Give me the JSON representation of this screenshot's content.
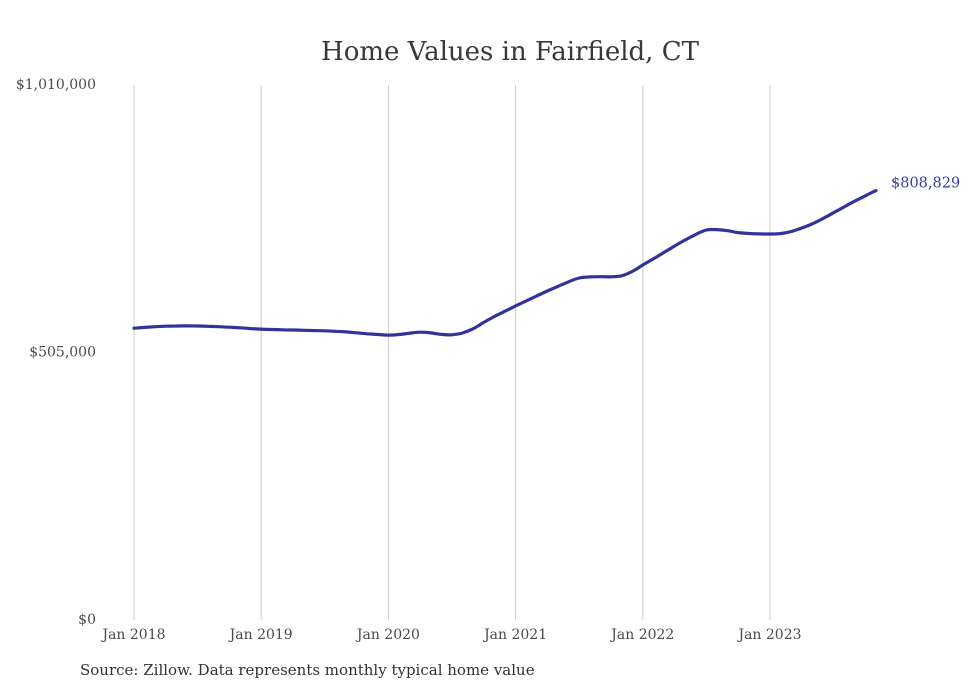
{
  "title": "Home Values in Fairfield, CT",
  "source_note": "Source: Zillow. Data represents monthly typical home value",
  "colors": {
    "line": "#32329b",
    "end_label_text": "#3b3b9e",
    "grid": "#cccccc",
    "title_text": "#383838",
    "axis_text": "#4a4a4a",
    "background": "#ffffff"
  },
  "chart_data": {
    "type": "line",
    "title": "Home Values in Fairfield, CT",
    "series_name": "Monthly typical home value (USD)",
    "xlabel": "",
    "ylabel": "",
    "ylim": [
      0,
      1010000
    ],
    "y_tick_values": [
      0,
      505000,
      1010000
    ],
    "y_tick_labels": [
      "$0",
      "$505,000",
      "$1,010,000"
    ],
    "x_tick_labels": [
      "Jan 2018",
      "Jan 2019",
      "Jan 2020",
      "Jan 2021",
      "Jan 2022",
      "Jan 2023"
    ],
    "grid": "vertical-only",
    "legend": "none",
    "end_label": "$808,829",
    "end_value": 808829,
    "x": [
      "2018-01",
      "2018-02",
      "2018-03",
      "2018-04",
      "2018-05",
      "2018-06",
      "2018-07",
      "2018-08",
      "2018-09",
      "2018-10",
      "2018-11",
      "2018-12",
      "2019-01",
      "2019-02",
      "2019-03",
      "2019-04",
      "2019-05",
      "2019-06",
      "2019-07",
      "2019-08",
      "2019-09",
      "2019-10",
      "2019-11",
      "2019-12",
      "2020-01",
      "2020-02",
      "2020-03",
      "2020-04",
      "2020-05",
      "2020-06",
      "2020-07",
      "2020-08",
      "2020-09",
      "2020-10",
      "2020-11",
      "2020-12",
      "2021-01",
      "2021-02",
      "2021-03",
      "2021-04",
      "2021-05",
      "2021-06",
      "2021-07",
      "2021-08",
      "2021-09",
      "2021-10",
      "2021-11",
      "2021-12",
      "2022-01",
      "2022-02",
      "2022-03",
      "2022-04",
      "2022-05",
      "2022-06",
      "2022-07",
      "2022-08",
      "2022-09",
      "2022-10",
      "2022-11",
      "2022-12",
      "2023-01",
      "2023-02",
      "2023-03",
      "2023-04",
      "2023-05",
      "2023-06",
      "2023-07",
      "2023-08",
      "2023-09",
      "2023-10",
      "2023-11"
    ],
    "values": [
      549000,
      550500,
      551800,
      552700,
      553200,
      553400,
      553100,
      552600,
      551800,
      550800,
      549700,
      548300,
      547200,
      546500,
      546000,
      545500,
      545000,
      544500,
      544000,
      543200,
      542000,
      540300,
      538500,
      537000,
      536000,
      537000,
      539500,
      541500,
      540200,
      537200,
      536500,
      540000,
      548000,
      560000,
      571000,
      581000,
      591000,
      600500,
      610000,
      619200,
      628000,
      636500,
      643800,
      645800,
      646200,
      646000,
      648000,
      656000,
      668300,
      680000,
      692000,
      704200,
      715500,
      726000,
      734400,
      735200,
      733000,
      729500,
      727800,
      727000,
      726800,
      727500,
      731500,
      738100,
      746000,
      756000,
      767000,
      778000,
      789000,
      799000,
      808829
    ]
  }
}
